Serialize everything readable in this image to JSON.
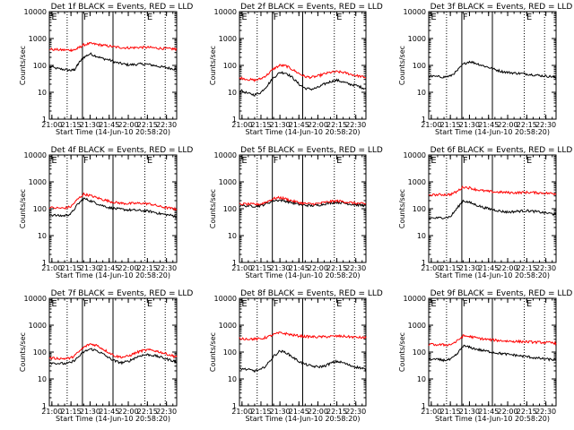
{
  "figure": {
    "time_ticks": [
      "21:00",
      "21:15",
      "21:30",
      "21:45",
      "22:00",
      "22:15",
      "22:30"
    ],
    "y_ticks": [
      "1",
      "10",
      "100",
      "1000",
      "10000"
    ],
    "colors": {
      "events": "#000000",
      "lld": "#ff0000",
      "axes": "#000000"
    }
  },
  "chart_data": [
    {
      "type": "line",
      "title": "Det 1f BLACK = Events, RED = LLD",
      "xlabel": "Start Time (14-Jun-10 20:58:20)",
      "ylabel": "Counts/sec",
      "yscale": "log",
      "ylim": [
        1,
        10000
      ],
      "xlim": [
        "20:58",
        "22:38"
      ],
      "grid": false,
      "x": [
        "20:58",
        "21:05",
        "21:10",
        "21:15",
        "21:18",
        "21:21",
        "21:25",
        "21:30",
        "21:35",
        "21:40",
        "21:45",
        "21:50",
        "21:55",
        "22:00",
        "22:05",
        "22:10",
        "22:15",
        "22:20",
        "22:25",
        "22:30",
        "22:35",
        "22:38"
      ],
      "series": [
        {
          "name": "Events",
          "values": [
            90,
            75,
            70,
            65,
            70,
            120,
            200,
            270,
            220,
            180,
            160,
            130,
            115,
            105,
            108,
            112,
            110,
            100,
            90,
            82,
            75,
            70
          ]
        },
        {
          "name": "LLD",
          "values": [
            400,
            380,
            375,
            370,
            380,
            450,
            580,
            650,
            610,
            560,
            520,
            480,
            460,
            450,
            460,
            470,
            470,
            450,
            430,
            420,
            410,
            400
          ]
        }
      ],
      "vlines": {
        "solid": [
          "21:24",
          "21:48"
        ],
        "dotted": [
          "21:12",
          "22:13",
          "22:29"
        ]
      },
      "markers": [
        {
          "text": "E",
          "x": "20:59"
        },
        {
          "text": "F",
          "x": "21:24"
        },
        {
          "text": "E",
          "x": "22:14"
        }
      ]
    },
    {
      "type": "line",
      "title": "Det 2f BLACK = Events, RED = LLD",
      "xlabel": "Start Time (14-Jun-10 20:58:20)",
      "ylabel": "Counts/sec",
      "yscale": "log",
      "ylim": [
        1,
        10000
      ],
      "xlim": [
        "20:58",
        "22:38"
      ],
      "grid": false,
      "x": [
        "20:58",
        "21:05",
        "21:10",
        "21:15",
        "21:20",
        "21:25",
        "21:30",
        "21:35",
        "21:40",
        "21:45",
        "21:50",
        "21:55",
        "22:00",
        "22:05",
        "22:10",
        "22:15",
        "22:20",
        "22:25",
        "22:30",
        "22:35",
        "22:38"
      ],
      "series": [
        {
          "name": "Events",
          "values": [
            12,
            9,
            8,
            10,
            18,
            35,
            55,
            52,
            35,
            20,
            14,
            13,
            15,
            20,
            25,
            28,
            24,
            20,
            18,
            15,
            13
          ]
        },
        {
          "name": "LLD",
          "values": [
            35,
            30,
            28,
            32,
            45,
            75,
            100,
            95,
            70,
            50,
            38,
            36,
            40,
            48,
            55,
            58,
            55,
            48,
            42,
            38,
            35
          ]
        }
      ],
      "vlines": {
        "solid": [
          "21:24",
          "21:48"
        ],
        "dotted": [
          "21:12",
          "22:13",
          "22:29"
        ]
      },
      "markers": [
        {
          "text": "E",
          "x": "20:59"
        },
        {
          "text": "F",
          "x": "21:24"
        },
        {
          "text": "E",
          "x": "22:14"
        }
      ]
    },
    {
      "type": "line",
      "title": "Det 3f BLACK = Events, RED = LLD",
      "xlabel": "Start Time (14-Jun-10 20:58:20)",
      "ylabel": "Counts/sec",
      "yscale": "log",
      "ylim": [
        1,
        10000
      ],
      "xlim": [
        "20:58",
        "22:38"
      ],
      "grid": false,
      "x": [
        "20:58",
        "21:05",
        "21:10",
        "21:15",
        "21:20",
        "21:25",
        "21:30",
        "21:35",
        "21:40",
        "21:45",
        "21:50",
        "21:55",
        "22:00",
        "22:05",
        "22:10",
        "22:15",
        "22:20",
        "22:25",
        "22:30",
        "22:35",
        "22:38"
      ],
      "series": [
        {
          "name": "Events",
          "values": [
            40,
            38,
            37,
            40,
            60,
            110,
            140,
            120,
            100,
            85,
            70,
            60,
            55,
            52,
            50,
            48,
            45,
            42,
            40,
            38,
            35
          ]
        }
      ],
      "vlines": {
        "solid": [
          "21:24",
          "21:48"
        ],
        "dotted": [
          "21:12",
          "22:13",
          "22:29"
        ]
      },
      "markers": [
        {
          "text": "E",
          "x": "20:59"
        },
        {
          "text": "F",
          "x": "21:24"
        },
        {
          "text": "E",
          "x": "22:14"
        }
      ]
    },
    {
      "type": "line",
      "title": "Det 4f BLACK = Events, RED = LLD",
      "xlabel": "Start Time (14-Jun-10 20:58:20)",
      "ylabel": "Counts/sec",
      "yscale": "log",
      "ylim": [
        1,
        10000
      ],
      "xlim": [
        "20:58",
        "22:38"
      ],
      "grid": false,
      "x": [
        "20:58",
        "21:05",
        "21:10",
        "21:15",
        "21:20",
        "21:25",
        "21:30",
        "21:35",
        "21:40",
        "21:45",
        "21:50",
        "21:55",
        "22:00",
        "22:05",
        "22:10",
        "22:15",
        "22:20",
        "22:25",
        "22:30",
        "22:35",
        "22:38"
      ],
      "series": [
        {
          "name": "Events",
          "values": [
            60,
            55,
            55,
            65,
            140,
            240,
            200,
            160,
            130,
            110,
            100,
            95,
            90,
            88,
            85,
            82,
            75,
            65,
            60,
            55,
            50
          ]
        },
        {
          "name": "LLD",
          "values": [
            110,
            105,
            105,
            120,
            220,
            350,
            310,
            260,
            220,
            190,
            170,
            160,
            155,
            158,
            160,
            155,
            140,
            120,
            110,
            100,
            95
          ]
        }
      ],
      "vlines": {
        "solid": [
          "21:24",
          "21:48"
        ],
        "dotted": [
          "21:12",
          "22:13",
          "22:29"
        ]
      },
      "markers": [
        {
          "text": "E",
          "x": "20:59"
        },
        {
          "text": "F",
          "x": "21:24"
        },
        {
          "text": "E",
          "x": "22:14"
        }
      ]
    },
    {
      "type": "line",
      "title": "Det 5f BLACK = Events, RED = LLD",
      "xlabel": "Start Time (14-Jun-10 20:58:20)",
      "ylabel": "Counts/sec",
      "yscale": "log",
      "ylim": [
        1,
        10000
      ],
      "xlim": [
        "20:58",
        "22:38"
      ],
      "grid": false,
      "x": [
        "20:58",
        "21:05",
        "21:10",
        "21:15",
        "21:20",
        "21:25",
        "21:30",
        "21:35",
        "21:40",
        "21:45",
        "21:50",
        "21:55",
        "22:00",
        "22:05",
        "22:10",
        "22:15",
        "22:20",
        "22:25",
        "22:30",
        "22:35",
        "22:38"
      ],
      "series": [
        {
          "name": "Events",
          "values": [
            130,
            128,
            125,
            130,
            160,
            200,
            210,
            190,
            165,
            145,
            135,
            130,
            135,
            150,
            165,
            175,
            165,
            150,
            140,
            135,
            130
          ]
        },
        {
          "name": "LLD",
          "values": [
            150,
            148,
            145,
            150,
            185,
            240,
            260,
            230,
            195,
            170,
            155,
            150,
            155,
            170,
            185,
            195,
            185,
            170,
            160,
            155,
            150
          ]
        }
      ],
      "vlines": {
        "solid": [
          "21:24",
          "21:48"
        ],
        "dotted": [
          "21:12",
          "22:13",
          "22:29"
        ]
      },
      "markers": [
        {
          "text": "E",
          "x": "20:59"
        },
        {
          "text": "F",
          "x": "21:24"
        },
        {
          "text": "E",
          "x": "22:14"
        }
      ]
    },
    {
      "type": "line",
      "title": "Det 6f BLACK = Events, RED = LLD",
      "xlabel": "Start Time (14-Jun-10 20:58:20)",
      "ylabel": "Counts/sec",
      "yscale": "log",
      "ylim": [
        1,
        10000
      ],
      "xlim": [
        "20:58",
        "22:38"
      ],
      "grid": false,
      "x": [
        "20:58",
        "21:05",
        "21:10",
        "21:15",
        "21:20",
        "21:25",
        "21:30",
        "21:35",
        "21:40",
        "21:45",
        "21:50",
        "21:55",
        "22:00",
        "22:05",
        "22:10",
        "22:15",
        "22:20",
        "22:25",
        "22:30",
        "22:35",
        "22:38"
      ],
      "series": [
        {
          "name": "Events",
          "values": [
            45,
            45,
            47,
            50,
            100,
            200,
            170,
            140,
            115,
            100,
            90,
            80,
            75,
            78,
            82,
            85,
            80,
            75,
            70,
            65,
            60
          ]
        },
        {
          "name": "LLD",
          "values": [
            330,
            330,
            335,
            340,
            430,
            650,
            600,
            520,
            470,
            440,
            420,
            410,
            400,
            395,
            400,
            405,
            400,
            390,
            380,
            370,
            360
          ]
        }
      ],
      "vlines": {
        "solid": [
          "21:24",
          "21:48"
        ],
        "dotted": [
          "21:12",
          "22:13",
          "22:29"
        ]
      },
      "markers": [
        {
          "text": "E",
          "x": "20:59"
        },
        {
          "text": "F",
          "x": "21:24"
        },
        {
          "text": "E",
          "x": "22:14"
        }
      ]
    },
    {
      "type": "line",
      "title": "Det 7f BLACK = Events, RED = LLD",
      "xlabel": "Start Time (14-Jun-10 20:58:20)",
      "ylabel": "Counts/sec",
      "yscale": "log",
      "ylim": [
        1,
        10000
      ],
      "xlim": [
        "20:58",
        "22:38"
      ],
      "grid": false,
      "x": [
        "20:58",
        "21:05",
        "21:10",
        "21:15",
        "21:20",
        "21:25",
        "21:30",
        "21:35",
        "21:40",
        "21:45",
        "21:50",
        "21:55",
        "22:00",
        "22:05",
        "22:10",
        "22:15",
        "22:20",
        "22:25",
        "22:30",
        "22:35",
        "22:38"
      ],
      "series": [
        {
          "name": "Events",
          "values": [
            40,
            38,
            37,
            40,
            60,
            100,
            130,
            115,
            85,
            60,
            45,
            40,
            45,
            60,
            75,
            80,
            75,
            65,
            55,
            48,
            42
          ]
        },
        {
          "name": "LLD",
          "values": [
            60,
            58,
            57,
            60,
            90,
            150,
            200,
            180,
            130,
            95,
            70,
            65,
            70,
            90,
            110,
            120,
            115,
            100,
            85,
            72,
            65
          ]
        }
      ],
      "vlines": {
        "solid": [
          "21:24",
          "21:48"
        ],
        "dotted": [
          "21:12",
          "22:13",
          "22:29"
        ]
      },
      "markers": [
        {
          "text": "E",
          "x": "20:59"
        },
        {
          "text": "F",
          "x": "21:24"
        },
        {
          "text": "E",
          "x": "22:14"
        }
      ]
    },
    {
      "type": "line",
      "title": "Det 8f BLACK = Events, RED = LLD",
      "xlabel": "Start Time (14-Jun-10 20:58:20)",
      "ylabel": "Counts/sec",
      "yscale": "log",
      "ylim": [
        1,
        10000
      ],
      "xlim": [
        "20:58",
        "22:38"
      ],
      "grid": false,
      "x": [
        "20:58",
        "21:05",
        "21:10",
        "21:15",
        "21:20",
        "21:25",
        "21:30",
        "21:35",
        "21:40",
        "21:45",
        "21:50",
        "21:55",
        "22:00",
        "22:05",
        "22:10",
        "22:15",
        "22:20",
        "22:25",
        "22:30",
        "22:35",
        "22:38"
      ],
      "series": [
        {
          "name": "Events",
          "values": [
            25,
            22,
            20,
            22,
            35,
            70,
            110,
            95,
            65,
            45,
            35,
            30,
            28,
            30,
            38,
            45,
            40,
            32,
            28,
            25,
            22
          ]
        },
        {
          "name": "LLD",
          "values": [
            320,
            310,
            305,
            310,
            360,
            450,
            520,
            480,
            430,
            400,
            380,
            370,
            365,
            370,
            380,
            390,
            385,
            370,
            355,
            345,
            335
          ]
        }
      ],
      "vlines": {
        "solid": [
          "21:24",
          "21:48"
        ],
        "dotted": [
          "21:12",
          "22:13",
          "22:29"
        ]
      },
      "markers": [
        {
          "text": "E",
          "x": "20:59"
        },
        {
          "text": "F",
          "x": "21:24"
        },
        {
          "text": "E",
          "x": "22:14"
        }
      ]
    },
    {
      "type": "line",
      "title": "Det 9f BLACK = Events, RED = LLD",
      "xlabel": "Start Time (14-Jun-10 20:58:20)",
      "ylabel": "Counts/sec",
      "yscale": "log",
      "ylim": [
        1,
        10000
      ],
      "xlim": [
        "20:58",
        "22:38"
      ],
      "grid": false,
      "x": [
        "20:58",
        "21:05",
        "21:10",
        "21:15",
        "21:20",
        "21:25",
        "21:30",
        "21:35",
        "21:40",
        "21:45",
        "21:50",
        "21:55",
        "22:00",
        "22:05",
        "22:10",
        "22:15",
        "22:20",
        "22:25",
        "22:30",
        "22:35",
        "22:38"
      ],
      "series": [
        {
          "name": "Events",
          "values": [
            55,
            52,
            50,
            52,
            80,
            170,
            150,
            130,
            115,
            105,
            95,
            88,
            82,
            78,
            72,
            68,
            62,
            58,
            55,
            52,
            50
          ]
        },
        {
          "name": "LLD",
          "values": [
            190,
            188,
            185,
            190,
            250,
            400,
            380,
            340,
            310,
            290,
            275,
            265,
            255,
            250,
            245,
            240,
            235,
            230,
            225,
            220,
            215
          ]
        }
      ],
      "vlines": {
        "solid": [
          "21:24",
          "21:48"
        ],
        "dotted": [
          "21:12",
          "22:13",
          "22:29"
        ]
      },
      "markers": [
        {
          "text": "E",
          "x": "20:59"
        },
        {
          "text": "F",
          "x": "21:24"
        },
        {
          "text": "E",
          "x": "22:14"
        }
      ]
    }
  ]
}
